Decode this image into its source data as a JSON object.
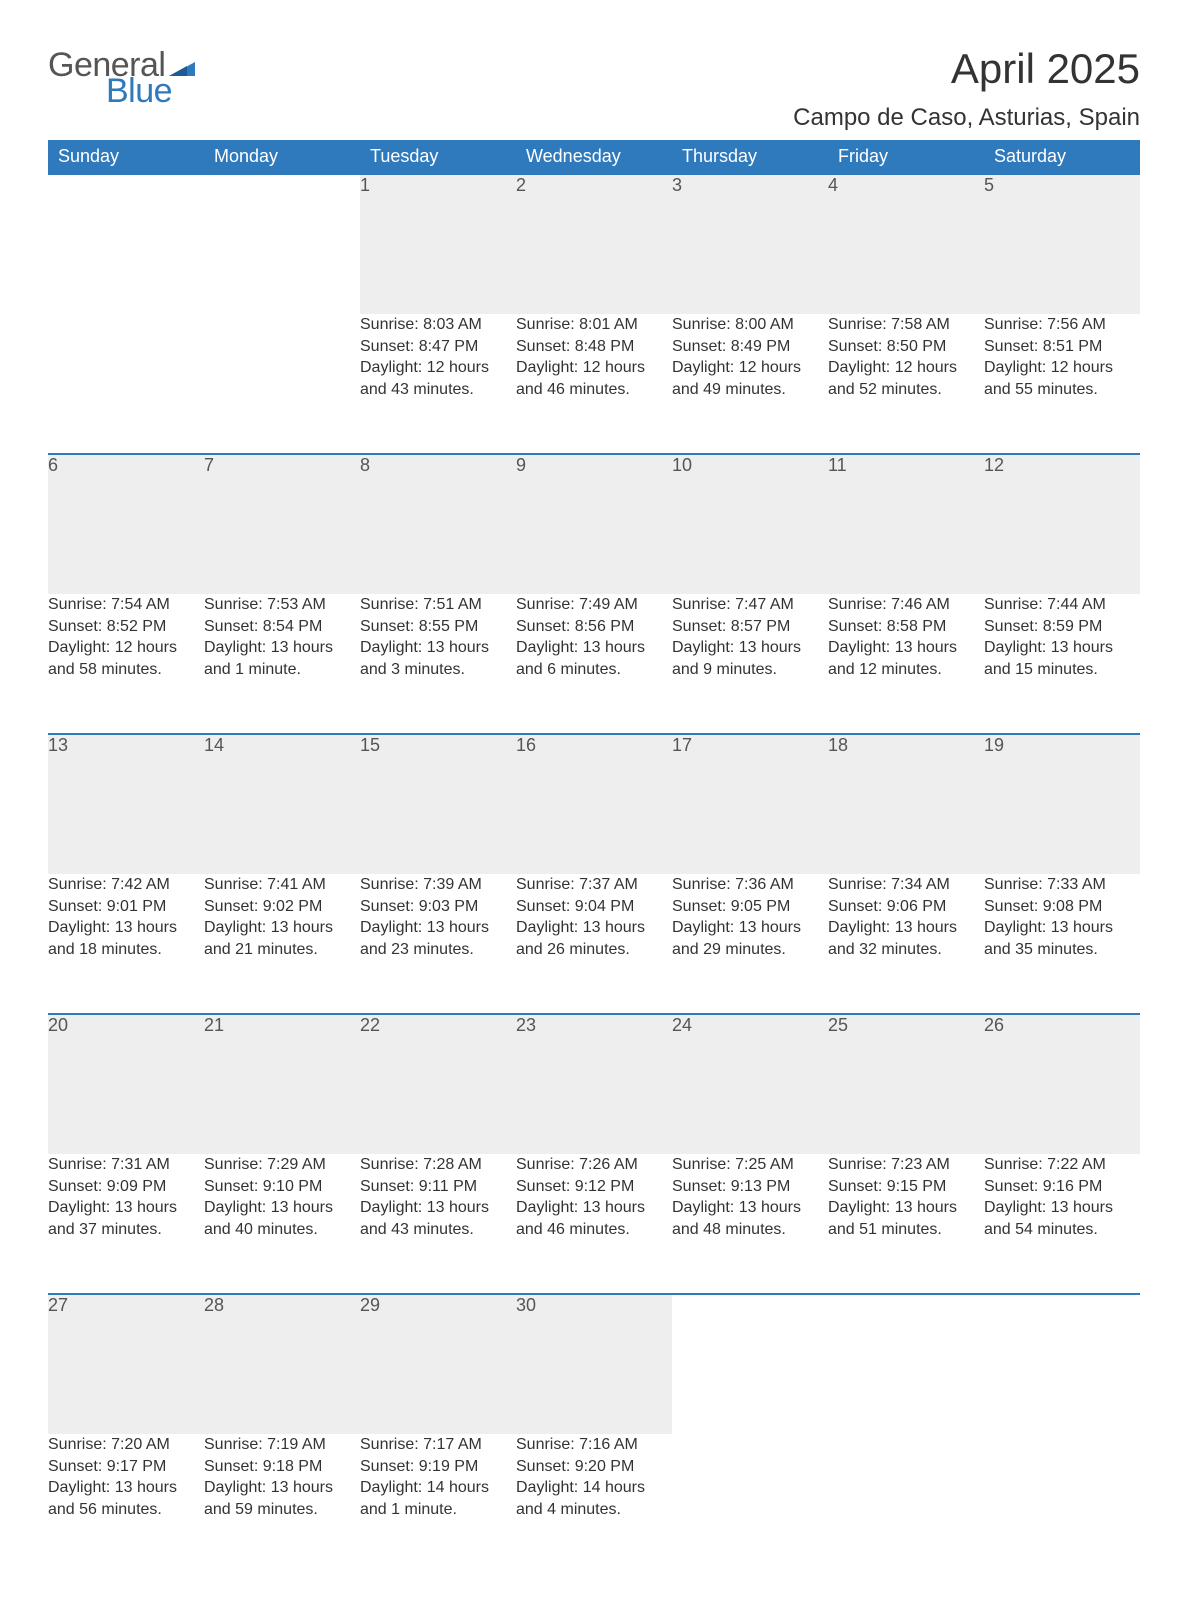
{
  "logo": {
    "word1": "General",
    "word2": "Blue",
    "color_general": "#555555",
    "color_blue": "#2f79bd"
  },
  "title": "April 2025",
  "location": "Campo de Caso, Asturias, Spain",
  "colors": {
    "header_bg": "#2f79bd",
    "header_text": "#ffffff",
    "daynum_bg": "#eeeeee",
    "border_top": "#2f79bd",
    "body_text": "#333333"
  },
  "columns": [
    "Sunday",
    "Monday",
    "Tuesday",
    "Wednesday",
    "Thursday",
    "Friday",
    "Saturday"
  ],
  "weeks": [
    [
      null,
      null,
      {
        "n": "1",
        "sunrise": "8:03 AM",
        "sunset": "8:47 PM",
        "daylight": "12 hours and 43 minutes."
      },
      {
        "n": "2",
        "sunrise": "8:01 AM",
        "sunset": "8:48 PM",
        "daylight": "12 hours and 46 minutes."
      },
      {
        "n": "3",
        "sunrise": "8:00 AM",
        "sunset": "8:49 PM",
        "daylight": "12 hours and 49 minutes."
      },
      {
        "n": "4",
        "sunrise": "7:58 AM",
        "sunset": "8:50 PM",
        "daylight": "12 hours and 52 minutes."
      },
      {
        "n": "5",
        "sunrise": "7:56 AM",
        "sunset": "8:51 PM",
        "daylight": "12 hours and 55 minutes."
      }
    ],
    [
      {
        "n": "6",
        "sunrise": "7:54 AM",
        "sunset": "8:52 PM",
        "daylight": "12 hours and 58 minutes."
      },
      {
        "n": "7",
        "sunrise": "7:53 AM",
        "sunset": "8:54 PM",
        "daylight": "13 hours and 1 minute."
      },
      {
        "n": "8",
        "sunrise": "7:51 AM",
        "sunset": "8:55 PM",
        "daylight": "13 hours and 3 minutes."
      },
      {
        "n": "9",
        "sunrise": "7:49 AM",
        "sunset": "8:56 PM",
        "daylight": "13 hours and 6 minutes."
      },
      {
        "n": "10",
        "sunrise": "7:47 AM",
        "sunset": "8:57 PM",
        "daylight": "13 hours and 9 minutes."
      },
      {
        "n": "11",
        "sunrise": "7:46 AM",
        "sunset": "8:58 PM",
        "daylight": "13 hours and 12 minutes."
      },
      {
        "n": "12",
        "sunrise": "7:44 AM",
        "sunset": "8:59 PM",
        "daylight": "13 hours and 15 minutes."
      }
    ],
    [
      {
        "n": "13",
        "sunrise": "7:42 AM",
        "sunset": "9:01 PM",
        "daylight": "13 hours and 18 minutes."
      },
      {
        "n": "14",
        "sunrise": "7:41 AM",
        "sunset": "9:02 PM",
        "daylight": "13 hours and 21 minutes."
      },
      {
        "n": "15",
        "sunrise": "7:39 AM",
        "sunset": "9:03 PM",
        "daylight": "13 hours and 23 minutes."
      },
      {
        "n": "16",
        "sunrise": "7:37 AM",
        "sunset": "9:04 PM",
        "daylight": "13 hours and 26 minutes."
      },
      {
        "n": "17",
        "sunrise": "7:36 AM",
        "sunset": "9:05 PM",
        "daylight": "13 hours and 29 minutes."
      },
      {
        "n": "18",
        "sunrise": "7:34 AM",
        "sunset": "9:06 PM",
        "daylight": "13 hours and 32 minutes."
      },
      {
        "n": "19",
        "sunrise": "7:33 AM",
        "sunset": "9:08 PM",
        "daylight": "13 hours and 35 minutes."
      }
    ],
    [
      {
        "n": "20",
        "sunrise": "7:31 AM",
        "sunset": "9:09 PM",
        "daylight": "13 hours and 37 minutes."
      },
      {
        "n": "21",
        "sunrise": "7:29 AM",
        "sunset": "9:10 PM",
        "daylight": "13 hours and 40 minutes."
      },
      {
        "n": "22",
        "sunrise": "7:28 AM",
        "sunset": "9:11 PM",
        "daylight": "13 hours and 43 minutes."
      },
      {
        "n": "23",
        "sunrise": "7:26 AM",
        "sunset": "9:12 PM",
        "daylight": "13 hours and 46 minutes."
      },
      {
        "n": "24",
        "sunrise": "7:25 AM",
        "sunset": "9:13 PM",
        "daylight": "13 hours and 48 minutes."
      },
      {
        "n": "25",
        "sunrise": "7:23 AM",
        "sunset": "9:15 PM",
        "daylight": "13 hours and 51 minutes."
      },
      {
        "n": "26",
        "sunrise": "7:22 AM",
        "sunset": "9:16 PM",
        "daylight": "13 hours and 54 minutes."
      }
    ],
    [
      {
        "n": "27",
        "sunrise": "7:20 AM",
        "sunset": "9:17 PM",
        "daylight": "13 hours and 56 minutes."
      },
      {
        "n": "28",
        "sunrise": "7:19 AM",
        "sunset": "9:18 PM",
        "daylight": "13 hours and 59 minutes."
      },
      {
        "n": "29",
        "sunrise": "7:17 AM",
        "sunset": "9:19 PM",
        "daylight": "14 hours and 1 minute."
      },
      {
        "n": "30",
        "sunrise": "7:16 AM",
        "sunset": "9:20 PM",
        "daylight": "14 hours and 4 minutes."
      },
      null,
      null,
      null
    ]
  ],
  "labels": {
    "sunrise": "Sunrise: ",
    "sunset": "Sunset: ",
    "daylight": "Daylight: "
  }
}
